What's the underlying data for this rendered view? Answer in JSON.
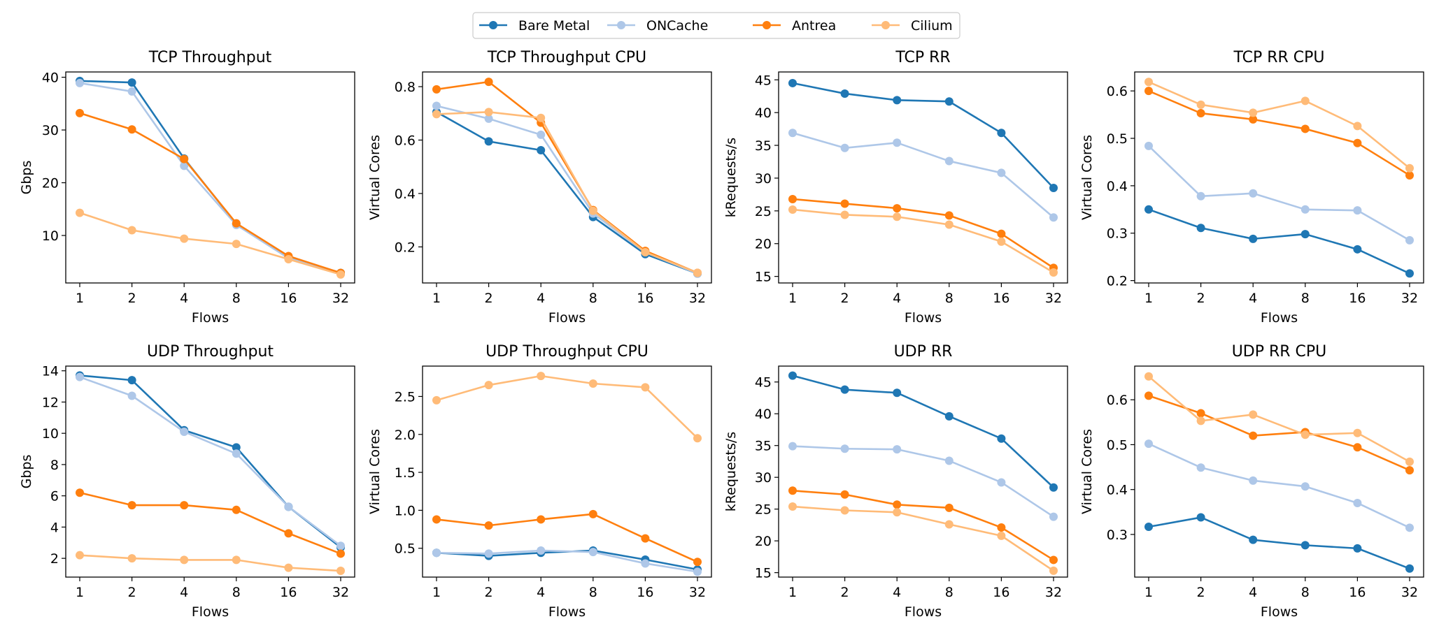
{
  "legend": {
    "entries": [
      {
        "name": "Bare Metal",
        "color": "#1f77b4"
      },
      {
        "name": "ONCache",
        "color": "#aec7e8"
      },
      {
        "name": "Antrea",
        "color": "#ff7f0e"
      },
      {
        "name": "Cilium",
        "color": "#ffbb78"
      }
    ]
  },
  "chart_data": [
    {
      "type": "line",
      "title": "TCP Throughput",
      "xlabel": "Flows",
      "ylabel": "Gbps",
      "categories": [
        "1",
        "2",
        "4",
        "8",
        "16",
        "32"
      ],
      "ylim": [
        1,
        41
      ],
      "yticks": [
        10,
        20,
        30,
        40
      ],
      "series": [
        {
          "name": "Bare Metal",
          "color": "#1f77b4",
          "values": [
            39.3,
            39.0,
            24.6,
            12.2,
            6.0,
            2.9
          ]
        },
        {
          "name": "ONCache",
          "color": "#aec7e8",
          "values": [
            38.9,
            37.3,
            23.2,
            12.0,
            5.7,
            2.8
          ]
        },
        {
          "name": "Antrea",
          "color": "#ff7f0e",
          "values": [
            33.2,
            30.1,
            24.5,
            12.3,
            6.1,
            2.9
          ]
        },
        {
          "name": "Cilium",
          "color": "#ffbb78",
          "values": [
            14.3,
            11.0,
            9.4,
            8.4,
            5.5,
            2.6
          ]
        }
      ]
    },
    {
      "type": "line",
      "title": "TCP Throughput CPU",
      "xlabel": "Flows",
      "ylabel": "Virtual Cores",
      "categories": [
        "1",
        "2",
        "4",
        "8",
        "16",
        "32"
      ],
      "ylim": [
        0.065,
        0.855
      ],
      "yticks": [
        0.2,
        0.4,
        0.6,
        0.8
      ],
      "tick_labels": [
        "0.2",
        "0.4",
        "0.6",
        "0.8"
      ],
      "series": [
        {
          "name": "Bare Metal",
          "color": "#1f77b4",
          "values": [
            0.705,
            0.595,
            0.562,
            0.312,
            0.173,
            0.1
          ]
        },
        {
          "name": "ONCache",
          "color": "#aec7e8",
          "values": [
            0.728,
            0.68,
            0.62,
            0.325,
            0.18,
            0.1
          ]
        },
        {
          "name": "Antrea",
          "color": "#ff7f0e",
          "values": [
            0.79,
            0.818,
            0.665,
            0.338,
            0.185,
            0.103
          ]
        },
        {
          "name": "Cilium",
          "color": "#ffbb78",
          "values": [
            0.697,
            0.705,
            0.683,
            0.335,
            0.18,
            0.103
          ]
        }
      ]
    },
    {
      "type": "line",
      "title": "TCP RR",
      "xlabel": "Flows",
      "ylabel": "kRequests/s",
      "categories": [
        "1",
        "2",
        "4",
        "8",
        "16",
        "32"
      ],
      "ylim": [
        14,
        46.2
      ],
      "yticks": [
        15,
        20,
        25,
        30,
        35,
        40,
        45
      ],
      "series": [
        {
          "name": "Bare Metal",
          "color": "#1f77b4",
          "values": [
            44.5,
            42.9,
            41.9,
            41.7,
            36.9,
            28.5
          ]
        },
        {
          "name": "ONCache",
          "color": "#aec7e8",
          "values": [
            36.9,
            34.6,
            35.4,
            32.6,
            30.8,
            24.0
          ]
        },
        {
          "name": "Antrea",
          "color": "#ff7f0e",
          "values": [
            26.8,
            26.1,
            25.4,
            24.3,
            21.5,
            16.3
          ]
        },
        {
          "name": "Cilium",
          "color": "#ffbb78",
          "values": [
            25.2,
            24.4,
            24.1,
            22.9,
            20.3,
            15.6
          ]
        }
      ]
    },
    {
      "type": "line",
      "title": "TCP RR CPU",
      "xlabel": "Flows",
      "ylabel": "Virtual Cores",
      "categories": [
        "1",
        "2",
        "4",
        "8",
        "16",
        "32"
      ],
      "ylim": [
        0.195,
        0.64
      ],
      "yticks": [
        0.2,
        0.3,
        0.4,
        0.5,
        0.6
      ],
      "tick_labels": [
        "0.2",
        "0.3",
        "0.4",
        "0.5",
        "0.6"
      ],
      "series": [
        {
          "name": "Bare Metal",
          "color": "#1f77b4",
          "values": [
            0.35,
            0.311,
            0.288,
            0.298,
            0.266,
            0.215
          ]
        },
        {
          "name": "ONCache",
          "color": "#aec7e8",
          "values": [
            0.484,
            0.378,
            0.384,
            0.35,
            0.348,
            0.285
          ]
        },
        {
          "name": "Antrea",
          "color": "#ff7f0e",
          "values": [
            0.6,
            0.553,
            0.54,
            0.52,
            0.49,
            0.422
          ]
        },
        {
          "name": "Cilium",
          "color": "#ffbb78",
          "values": [
            0.619,
            0.571,
            0.554,
            0.579,
            0.526,
            0.437
          ]
        }
      ]
    },
    {
      "type": "line",
      "title": "UDP Throughput",
      "xlabel": "Flows",
      "ylabel": "Gbps",
      "categories": [
        "1",
        "2",
        "4",
        "8",
        "16",
        "32"
      ],
      "ylim": [
        0.8,
        14.3
      ],
      "yticks": [
        2,
        4,
        6,
        8,
        10,
        12,
        14
      ],
      "series": [
        {
          "name": "Bare Metal",
          "color": "#1f77b4",
          "values": [
            13.7,
            13.4,
            10.2,
            9.1,
            5.3,
            2.7
          ]
        },
        {
          "name": "ONCache",
          "color": "#aec7e8",
          "values": [
            13.6,
            12.4,
            10.1,
            8.7,
            5.3,
            2.8
          ]
        },
        {
          "name": "Antrea",
          "color": "#ff7f0e",
          "values": [
            6.2,
            5.4,
            5.4,
            5.1,
            3.6,
            2.3
          ]
        },
        {
          "name": "Cilium",
          "color": "#ffbb78",
          "values": [
            2.2,
            2.0,
            1.9,
            1.9,
            1.4,
            1.2
          ]
        }
      ]
    },
    {
      "type": "line",
      "title": "UDP Throughput CPU",
      "xlabel": "Flows",
      "ylabel": "Virtual Cores",
      "categories": [
        "1",
        "2",
        "4",
        "8",
        "16",
        "32"
      ],
      "ylim": [
        0.12,
        2.9
      ],
      "yticks": [
        0.5,
        1.0,
        1.5,
        2.0,
        2.5
      ],
      "tick_labels": [
        "0.5",
        "1.0",
        "1.5",
        "2.0",
        "2.5"
      ],
      "series": [
        {
          "name": "Bare Metal",
          "color": "#1f77b4",
          "values": [
            0.44,
            0.4,
            0.44,
            0.47,
            0.35,
            0.22
          ]
        },
        {
          "name": "ONCache",
          "color": "#aec7e8",
          "values": [
            0.44,
            0.43,
            0.47,
            0.45,
            0.3,
            0.19
          ]
        },
        {
          "name": "Antrea",
          "color": "#ff7f0e",
          "values": [
            0.88,
            0.8,
            0.88,
            0.95,
            0.63,
            0.32
          ]
        },
        {
          "name": "Cilium",
          "color": "#ffbb78",
          "values": [
            2.45,
            2.65,
            2.77,
            2.67,
            2.62,
            1.95
          ]
        }
      ]
    },
    {
      "type": "line",
      "title": "UDP RR",
      "xlabel": "Flows",
      "ylabel": "kRequests/s",
      "categories": [
        "1",
        "2",
        "4",
        "8",
        "16",
        "32"
      ],
      "ylim": [
        14.3,
        47.5
      ],
      "yticks": [
        15,
        20,
        25,
        30,
        35,
        40,
        45
      ],
      "series": [
        {
          "name": "Bare Metal",
          "color": "#1f77b4",
          "values": [
            46.0,
            43.8,
            43.3,
            39.6,
            36.1,
            28.4
          ]
        },
        {
          "name": "ONCache",
          "color": "#aec7e8",
          "values": [
            34.9,
            34.5,
            34.4,
            32.6,
            29.2,
            23.8
          ]
        },
        {
          "name": "Antrea",
          "color": "#ff7f0e",
          "values": [
            27.9,
            27.3,
            25.7,
            25.2,
            22.1,
            17.0
          ]
        },
        {
          "name": "Cilium",
          "color": "#ffbb78",
          "values": [
            25.4,
            24.8,
            24.5,
            22.6,
            20.8,
            15.3
          ]
        }
      ]
    },
    {
      "type": "line",
      "title": "UDP RR CPU",
      "xlabel": "Flows",
      "ylabel": "Virtual Cores",
      "categories": [
        "1",
        "2",
        "4",
        "8",
        "16",
        "32"
      ],
      "ylim": [
        0.205,
        0.675
      ],
      "yticks": [
        0.3,
        0.4,
        0.5,
        0.6
      ],
      "tick_labels": [
        "0.3",
        "0.4",
        "0.5",
        "0.6"
      ],
      "series": [
        {
          "name": "Bare Metal",
          "color": "#1f77b4",
          "values": [
            0.317,
            0.338,
            0.288,
            0.276,
            0.269,
            0.224
          ]
        },
        {
          "name": "ONCache",
          "color": "#aec7e8",
          "values": [
            0.502,
            0.449,
            0.42,
            0.407,
            0.37,
            0.315
          ]
        },
        {
          "name": "Antrea",
          "color": "#ff7f0e",
          "values": [
            0.609,
            0.57,
            0.52,
            0.528,
            0.494,
            0.443
          ]
        },
        {
          "name": "Cilium",
          "color": "#ffbb78",
          "values": [
            0.652,
            0.553,
            0.567,
            0.522,
            0.526,
            0.462
          ]
        }
      ]
    }
  ]
}
